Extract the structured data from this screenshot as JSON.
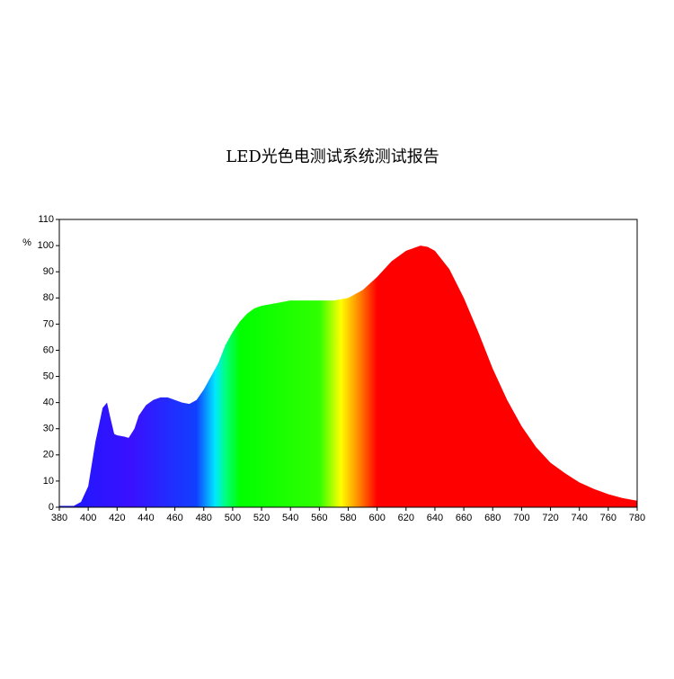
{
  "chart_data": {
    "type": "area",
    "title": "LED光色电测试系统测试报告",
    "y_label": "%",
    "x": [
      380,
      385,
      390,
      395,
      400,
      405,
      410,
      413,
      415,
      418,
      420,
      425,
      428,
      432,
      435,
      440,
      445,
      450,
      455,
      460,
      465,
      470,
      475,
      480,
      485,
      490,
      495,
      500,
      505,
      510,
      515,
      520,
      530,
      540,
      550,
      560,
      570,
      580,
      590,
      600,
      610,
      620,
      630,
      635,
      640,
      650,
      660,
      670,
      680,
      690,
      700,
      710,
      720,
      730,
      740,
      750,
      760,
      770,
      780
    ],
    "values": [
      0.5,
      0.5,
      0.5,
      2,
      8,
      25,
      38,
      40,
      35,
      28,
      27.5,
      27,
      26.5,
      30,
      35,
      39,
      41,
      42,
      42,
      41,
      40,
      39.5,
      41,
      45,
      50,
      55,
      62,
      67,
      71,
      74,
      76,
      77,
      78,
      79,
      79,
      79,
      79,
      80,
      83,
      88,
      94,
      98,
      100,
      99.5,
      98,
      91,
      80,
      67,
      53,
      41,
      31,
      23,
      17,
      13,
      9.5,
      7,
      5,
      3.5,
      2.5
    ],
    "gradient": [
      {
        "x": 380,
        "color": "#1a1aff"
      },
      {
        "x": 430,
        "color": "#3a10ff"
      },
      {
        "x": 475,
        "color": "#1040ff"
      },
      {
        "x": 488,
        "color": "#00e8ff"
      },
      {
        "x": 495,
        "color": "#00ff80"
      },
      {
        "x": 505,
        "color": "#00ff00"
      },
      {
        "x": 560,
        "color": "#30ff00"
      },
      {
        "x": 575,
        "color": "#ffff00"
      },
      {
        "x": 588,
        "color": "#ff8000"
      },
      {
        "x": 600,
        "color": "#ff0000"
      },
      {
        "x": 780,
        "color": "#ff0000"
      }
    ],
    "xlim": [
      380,
      780
    ],
    "xticks": [
      380,
      400,
      420,
      440,
      460,
      480,
      500,
      520,
      540,
      560,
      580,
      600,
      620,
      640,
      660,
      680,
      700,
      720,
      740,
      760,
      780
    ],
    "ylim": [
      0,
      110
    ],
    "yticks": [
      0,
      10,
      20,
      30,
      40,
      50,
      60,
      70,
      80,
      90,
      100,
      110
    ]
  }
}
